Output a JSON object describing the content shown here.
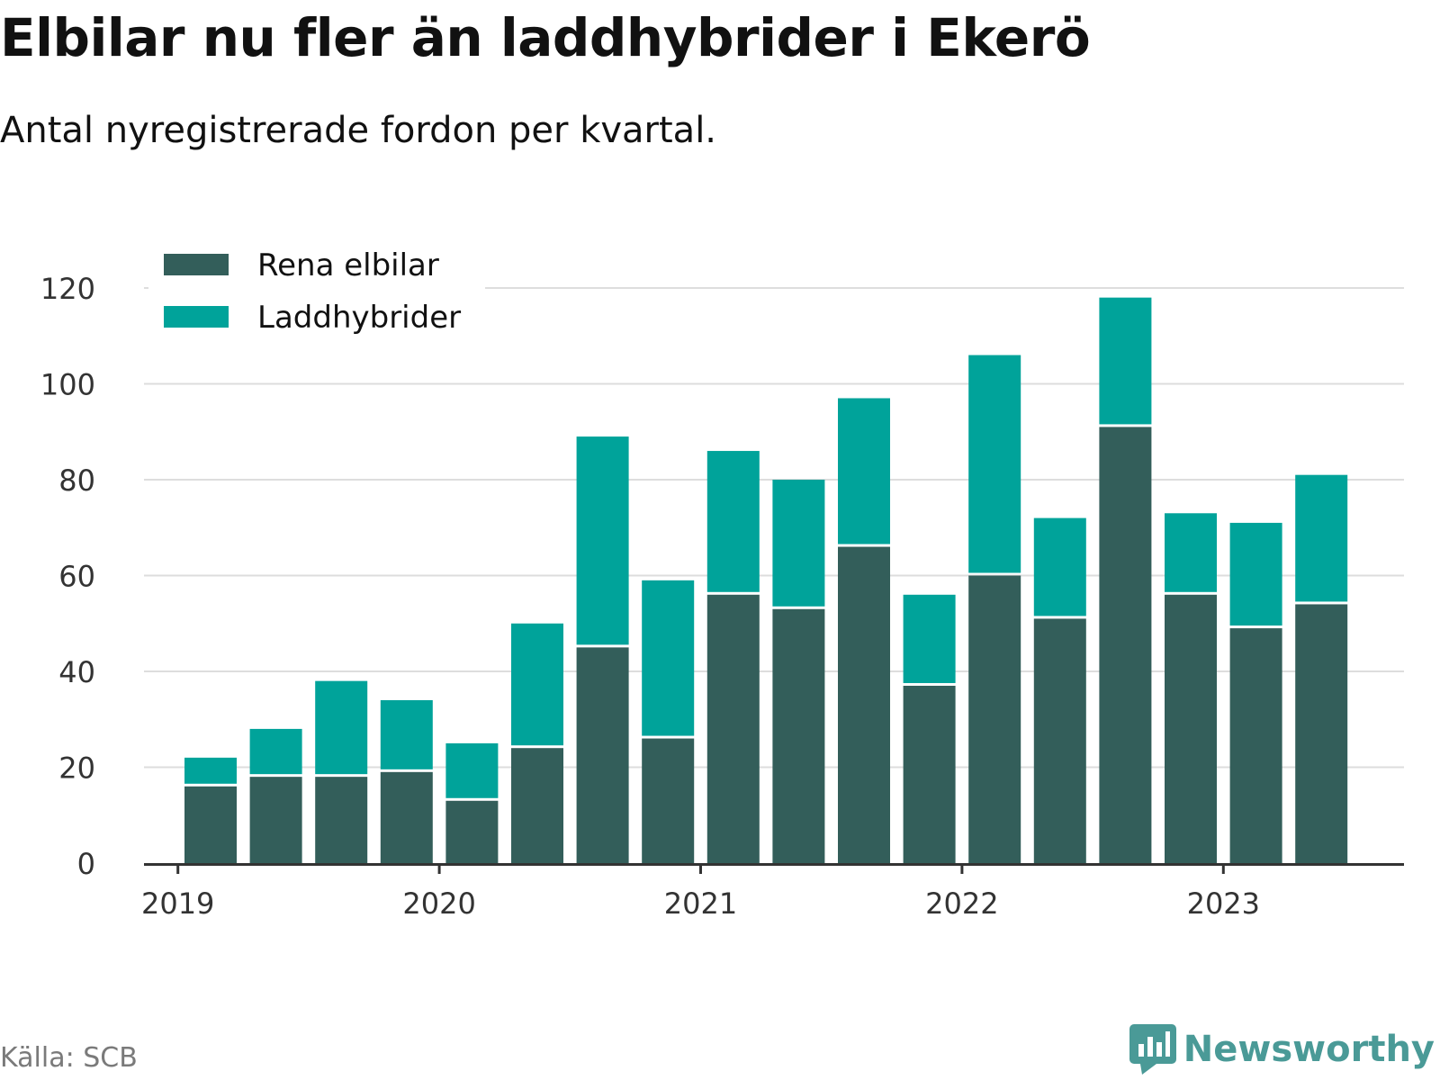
{
  "title": "Elbilar nu fler än laddhybrider i Ekerö",
  "subtitle": "Antal nyregistrerade fordon per kvartal.",
  "source": "Källa: SCB",
  "brand": "Newsworthy",
  "colors": {
    "elbilar": "#335e5a",
    "laddhybrider": "#00a39a",
    "grid": "#dddddd",
    "axis": "#333333",
    "brand": "#4a9a97"
  },
  "chart_data": {
    "type": "bar",
    "stacked": true,
    "title": "Elbilar nu fler än laddhybrider i Ekerö",
    "subtitle": "Antal nyregistrerade fordon per kvartal.",
    "legend_position": "top-left",
    "categories": [
      "2019 Q2",
      "2019 Q3",
      "2019 Q4",
      "2020 Q1",
      "2020 Q2",
      "2020 Q3",
      "2020 Q4",
      "2021 Q1",
      "2021 Q2",
      "2021 Q3",
      "2021 Q4",
      "2022 Q1",
      "2022 Q2",
      "2022 Q3",
      "2022 Q4",
      "2023 Q1",
      "2023 Q2",
      "2023 Q3"
    ],
    "x_ticks": [
      {
        "label": "2019",
        "index": -0.5
      },
      {
        "label": "2020",
        "index": 3.5
      },
      {
        "label": "2021",
        "index": 7.5
      },
      {
        "label": "2022",
        "index": 11.5
      },
      {
        "label": "2023",
        "index": 15.5
      }
    ],
    "series": [
      {
        "name": "Rena elbilar",
        "color": "#335e5a",
        "values": [
          16,
          18,
          18,
          19,
          13,
          24,
          45,
          26,
          56,
          53,
          66,
          37,
          60,
          51,
          91,
          56,
          49,
          54
        ]
      },
      {
        "name": "Laddhybrider",
        "color": "#00a39a",
        "values": [
          6,
          10,
          20,
          15,
          12,
          26,
          44,
          33,
          30,
          27,
          31,
          19,
          46,
          21,
          27,
          17,
          22,
          27
        ]
      }
    ],
    "ylim": [
      0,
      120
    ],
    "yticks": [
      0,
      20,
      40,
      60,
      80,
      100,
      120
    ],
    "xlabel": "",
    "ylabel": "",
    "grid": true
  }
}
